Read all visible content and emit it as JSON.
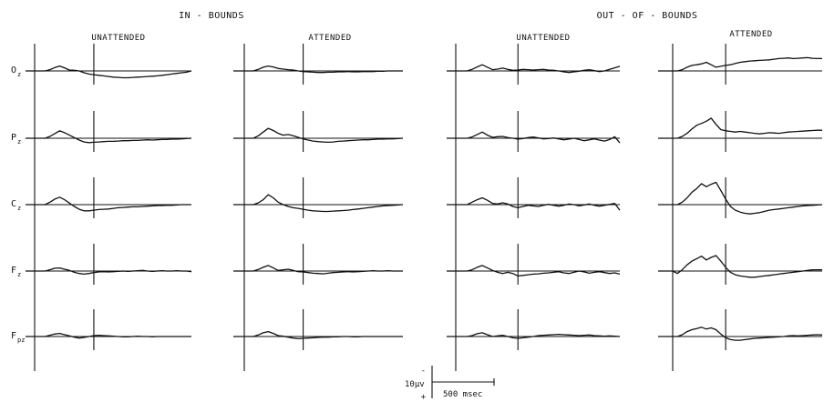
{
  "chart_data": {
    "type": "line",
    "description_labels": {
      "groups": [
        {
          "label": "IN - BOUNDS",
          "conditions": [
            "UNATTENDED",
            "ATTENDED"
          ]
        },
        {
          "label": "OUT - OF - BOUNDS",
          "conditions": [
            "UNATTENDED",
            "ATTENDED"
          ]
        }
      ]
    },
    "channels": [
      {
        "main": "O",
        "sub": "z"
      },
      {
        "main": "P",
        "sub": "z"
      },
      {
        "main": "C",
        "sub": "z"
      },
      {
        "main": "F",
        "sub": "z"
      },
      {
        "main": "F",
        "sub": "pz"
      }
    ],
    "scale_bar": {
      "amplitude_label": "10μv",
      "polarity_negative": "-",
      "polarity_positive": "+",
      "time_label": "500 msec",
      "amplitude_uv": 10,
      "time_ms": 500
    },
    "time_ms": [
      -200,
      -150,
      -100,
      -50,
      0,
      50,
      100,
      150,
      200,
      250,
      300,
      350,
      400,
      450,
      500,
      550,
      600,
      650,
      700,
      750,
      800,
      850,
      900,
      950,
      1000,
      1050,
      1100,
      1150,
      1200,
      1250,
      1300,
      1350,
      1400,
      1450,
      1500
    ],
    "waveforms": [
      [
        [
          0,
          0,
          0,
          0,
          0,
          0.4,
          1.1,
          1.6,
          1.0,
          0.3,
          0.2,
          0,
          -0.6,
          -1.0,
          -1.2,
          -1.4,
          -1.6,
          -1.8,
          -2.0,
          -2.1,
          -2.2,
          -2.2,
          -2.1,
          -2.0,
          -1.9,
          -1.8,
          -1.7,
          -1.6,
          -1.4,
          -1.2,
          -1.0,
          -0.8,
          -0.6,
          -0.4,
          0
        ],
        [
          0,
          0,
          0,
          0,
          0,
          0.5,
          1.2,
          1.6,
          1.3,
          0.8,
          0.6,
          0.4,
          0.3,
          0,
          -0.2,
          -0.3,
          -0.4,
          -0.5,
          -0.5,
          -0.4,
          -0.4,
          -0.3,
          -0.3,
          -0.2,
          -0.3,
          -0.3,
          -0.2,
          -0.2,
          -0.2,
          -0.1,
          -0.1,
          0,
          0,
          0,
          0
        ],
        [
          0,
          0,
          0,
          0,
          0,
          0.5,
          1.3,
          2.0,
          1.2,
          0.4,
          0.6,
          0.9,
          0.5,
          0.2,
          0.3,
          0.5,
          0.4,
          0.3,
          0.4,
          0.5,
          0.3,
          0.2,
          0.0,
          -0.3,
          -0.5,
          -0.3,
          -0.1,
          0.2,
          0.4,
          0.1,
          -0.2,
          0.0,
          0.5,
          1.0,
          1.5
        ],
        [
          0,
          0,
          0,
          0,
          0,
          0.4,
          1.2,
          1.8,
          2.0,
          2.3,
          2.8,
          2.0,
          1.2,
          1.5,
          1.8,
          2.0,
          2.4,
          2.8,
          3.0,
          3.2,
          3.3,
          3.4,
          3.5,
          3.6,
          3.8,
          4.0,
          4.1,
          4.2,
          4.0,
          4.1,
          4.2,
          4.3,
          4.1,
          4.0,
          4.0
        ]
      ],
      [
        [
          0,
          0,
          0,
          0,
          0,
          0.6,
          1.5,
          2.4,
          1.8,
          1.0,
          0.2,
          -0.6,
          -1.2,
          -1.4,
          -1.3,
          -1.2,
          -1.1,
          -1.0,
          -1.0,
          -0.9,
          -0.8,
          -0.8,
          -0.7,
          -0.7,
          -0.6,
          -0.5,
          -0.6,
          -0.5,
          -0.4,
          -0.4,
          -0.3,
          -0.3,
          -0.2,
          -0.1,
          0
        ],
        [
          0,
          0,
          0,
          0,
          0,
          0.8,
          2.0,
          3.2,
          2.5,
          1.6,
          1.0,
          1.2,
          0.8,
          0.3,
          -0.2,
          -0.6,
          -0.9,
          -1.1,
          -1.2,
          -1.3,
          -1.2,
          -1.0,
          -0.9,
          -0.8,
          -0.7,
          -0.6,
          -0.5,
          -0.5,
          -0.4,
          -0.3,
          -0.3,
          -0.2,
          -0.2,
          -0.1,
          0
        ],
        [
          0,
          0,
          0,
          0,
          0,
          0.4,
          1.2,
          2.0,
          1.0,
          0.3,
          0.5,
          0.6,
          0.2,
          0.0,
          -0.3,
          -0.1,
          0.2,
          0.4,
          0.1,
          -0.2,
          -0.1,
          0.1,
          -0.2,
          -0.5,
          -0.3,
          0.0,
          -0.4,
          -0.8,
          -0.5,
          -0.2,
          -0.6,
          -0.9,
          -0.4,
          0.5,
          -1.5
        ],
        [
          0,
          0,
          0,
          0,
          0,
          0.6,
          1.6,
          3.0,
          4.2,
          4.8,
          5.5,
          6.5,
          4.5,
          2.8,
          2.4,
          2.2,
          2.0,
          2.2,
          2.0,
          1.8,
          1.6,
          1.4,
          1.6,
          1.8,
          1.7,
          1.6,
          1.8,
          2.0,
          2.1,
          2.2,
          2.3,
          2.4,
          2.5,
          2.6,
          2.6
        ]
      ],
      [
        [
          0,
          0,
          0,
          0,
          0,
          0.8,
          1.8,
          2.4,
          1.6,
          0.5,
          -0.6,
          -1.5,
          -2.0,
          -2.0,
          -1.8,
          -1.6,
          -1.5,
          -1.4,
          -1.2,
          -1.0,
          -0.9,
          -0.8,
          -0.7,
          -0.7,
          -0.6,
          -0.5,
          -0.4,
          -0.3,
          -0.3,
          -0.2,
          -0.2,
          -0.1,
          0,
          0,
          0
        ],
        [
          0,
          0,
          0,
          0,
          0,
          0.6,
          1.6,
          3.2,
          2.2,
          0.8,
          0.0,
          -0.6,
          -1.0,
          -1.2,
          -1.5,
          -1.8,
          -2.0,
          -2.1,
          -2.2,
          -2.2,
          -2.1,
          -2.0,
          -1.9,
          -1.8,
          -1.6,
          -1.4,
          -1.2,
          -1.0,
          -0.8,
          -0.6,
          -0.4,
          -0.3,
          -0.2,
          -0.1,
          0
        ],
        [
          0,
          0,
          0,
          0,
          0,
          0.8,
          1.6,
          2.2,
          1.4,
          0.4,
          0.2,
          0.6,
          0.2,
          -0.6,
          -1.0,
          -0.6,
          -0.2,
          -0.4,
          -0.6,
          -0.2,
          0.1,
          -0.2,
          -0.5,
          -0.2,
          0.2,
          0.0,
          -0.4,
          -0.1,
          0.2,
          -0.2,
          -0.5,
          -0.2,
          0.1,
          0.4,
          -1.8
        ],
        [
          0,
          0,
          0,
          0,
          0,
          0.8,
          2.2,
          4.0,
          5.2,
          6.8,
          5.8,
          6.6,
          7.2,
          4.6,
          1.8,
          -0.6,
          -1.8,
          -2.4,
          -2.8,
          -3.0,
          -2.8,
          -2.6,
          -2.2,
          -1.8,
          -1.6,
          -1.4,
          -1.2,
          -1.0,
          -0.8,
          -0.6,
          -0.4,
          -0.3,
          -0.2,
          -0.1,
          0
        ]
      ],
      [
        [
          0,
          0,
          0,
          0,
          0,
          0.4,
          0.9,
          1.0,
          0.6,
          0.2,
          -0.4,
          -0.8,
          -1.0,
          -0.8,
          -0.5,
          -0.3,
          -0.2,
          -0.3,
          -0.2,
          -0.1,
          0.0,
          -0.1,
          0.0,
          0.1,
          0.2,
          0.0,
          -0.1,
          0.0,
          0.1,
          0.0,
          0.0,
          0.1,
          0.0,
          0.0,
          -0.2
        ],
        [
          0,
          0,
          0,
          0,
          0,
          0.5,
          1.2,
          1.8,
          1.0,
          0.2,
          0.4,
          0.6,
          0.2,
          -0.2,
          -0.3,
          -0.5,
          -0.7,
          -0.8,
          -0.9,
          -0.7,
          -0.5,
          -0.4,
          -0.3,
          -0.2,
          -0.3,
          -0.2,
          -0.1,
          0.0,
          0.1,
          0.0,
          0.0,
          0.1,
          0.0,
          0.0,
          0
        ],
        [
          0,
          0,
          0,
          0,
          0,
          0.4,
          1.2,
          1.8,
          1.0,
          0.2,
          -0.4,
          -0.8,
          -0.4,
          -0.8,
          -1.6,
          -1.4,
          -1.2,
          -1.0,
          -0.9,
          -0.7,
          -0.6,
          -0.4,
          -0.2,
          -0.6,
          -0.8,
          -0.4,
          0.0,
          -0.3,
          -0.7,
          -0.4,
          -0.2,
          -0.5,
          -0.8,
          -0.6,
          -1.0
        ],
        [
          0,
          0,
          0,
          0,
          -0.8,
          0.4,
          2.0,
          3.2,
          4.0,
          4.8,
          3.6,
          4.4,
          5.0,
          3.2,
          1.2,
          -0.4,
          -1.2,
          -1.6,
          -1.8,
          -2.0,
          -2.0,
          -1.8,
          -1.6,
          -1.4,
          -1.2,
          -1.0,
          -0.8,
          -0.6,
          -0.4,
          -0.2,
          0.0,
          0.2,
          0.4,
          0.4,
          0.4
        ]
      ],
      [
        [
          0,
          0,
          0,
          0,
          0,
          0.4,
          0.8,
          1.0,
          0.6,
          0.2,
          -0.2,
          -0.5,
          -0.3,
          0.0,
          0.3,
          0.4,
          0.3,
          0.2,
          0.1,
          0.0,
          -0.1,
          -0.1,
          0.0,
          0.1,
          0.0,
          0.0,
          -0.1,
          0.0,
          0.0,
          0.0,
          0.0,
          0.0,
          0.0,
          0.0,
          0
        ],
        [
          0,
          0,
          0,
          0,
          0,
          0.5,
          1.2,
          1.6,
          1.0,
          0.3,
          0.1,
          -0.2,
          -0.5,
          -0.7,
          -0.6,
          -0.5,
          -0.4,
          -0.3,
          -0.2,
          -0.2,
          -0.1,
          -0.1,
          0.0,
          0.0,
          -0.1,
          -0.1,
          0.0,
          0.0,
          0.0,
          0.0,
          0.0,
          0.0,
          0.0,
          0.0,
          0
        ],
        [
          0,
          0,
          0,
          0,
          0,
          0.3,
          0.9,
          1.2,
          0.6,
          0.0,
          0.2,
          0.4,
          0.0,
          -0.4,
          -0.6,
          -0.4,
          -0.2,
          0.0,
          0.3,
          0.4,
          0.5,
          0.6,
          0.7,
          0.6,
          0.5,
          0.4,
          0.3,
          0.4,
          0.5,
          0.3,
          0.2,
          0.1,
          0.2,
          0.1,
          0
        ],
        [
          0,
          0,
          0,
          0,
          0,
          0.6,
          1.6,
          2.2,
          2.6,
          3.0,
          2.4,
          2.8,
          2.2,
          0.8,
          -0.4,
          -1.0,
          -1.2,
          -1.2,
          -1.0,
          -0.8,
          -0.6,
          -0.5,
          -0.4,
          -0.3,
          -0.2,
          -0.1,
          0.0,
          0.2,
          0.3,
          0.2,
          0.3,
          0.4,
          0.5,
          0.6,
          0.5
        ]
      ]
    ]
  }
}
